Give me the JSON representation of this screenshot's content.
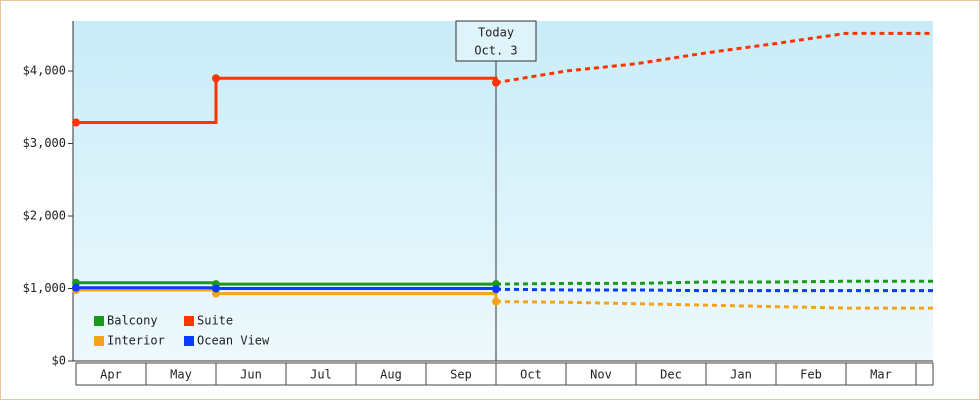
{
  "chart_data": {
    "type": "line",
    "categories": [
      "Apr",
      "May",
      "Jun",
      "Jul",
      "Aug",
      "Sep",
      "Oct",
      "Nov",
      "Dec",
      "Jan",
      "Feb",
      "Mar"
    ],
    "series": [
      {
        "name": "Balcony",
        "color": "#1a9a1a",
        "values": [
          1080,
          1080,
          1060,
          1060,
          1060,
          1060,
          1060,
          1070,
          1070,
          1090,
          1090,
          1100
        ]
      },
      {
        "name": "Suite",
        "color": "#ff3300",
        "values": [
          3290,
          3290,
          3900,
          3900,
          3900,
          3900,
          3840,
          4000,
          4100,
          4250,
          4380,
          4520
        ]
      },
      {
        "name": "Interior",
        "color": "#f5a31a",
        "values": [
          980,
          980,
          930,
          930,
          930,
          930,
          820,
          810,
          790,
          770,
          750,
          730
        ]
      },
      {
        "name": "Ocean View",
        "color": "#0a3bff",
        "values": [
          1010,
          1010,
          1000,
          1000,
          1000,
          1000,
          990,
          980,
          980,
          970,
          970,
          970
        ]
      }
    ],
    "annotation": {
      "text": [
        "Today",
        "Oct. 3"
      ],
      "category": "Oct"
    },
    "ylim": [
      0,
      4690
    ],
    "yticks": [
      {
        "value": 0,
        "label": "$0"
      },
      {
        "value": 1000,
        "label": "$1,000"
      },
      {
        "value": 2000,
        "label": "$2,000"
      },
      {
        "value": 3000,
        "label": "$3,000"
      },
      {
        "value": 4000,
        "label": "$4,000"
      }
    ]
  }
}
